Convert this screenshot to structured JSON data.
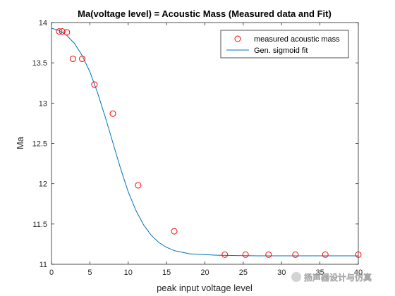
{
  "chart_data": {
    "type": "scatter",
    "title": "Ma(voltage level) = Acoustic Mass (Measured data and Fit)",
    "xlabel": "peak input voltage level",
    "ylabel": "Ma",
    "xlim": [
      0,
      40
    ],
    "ylim": [
      11,
      14
    ],
    "xticks": [
      0,
      5,
      10,
      15,
      20,
      25,
      30,
      35,
      40
    ],
    "yticks": [
      11,
      11.5,
      12,
      12.5,
      13,
      13.5,
      14
    ],
    "grid": false,
    "legend_position": "top-right",
    "series": [
      {
        "name": "measured acoustic mass",
        "style": "markers",
        "marker": "circle",
        "color": "#ff0000",
        "x": [
          1.0,
          1.4,
          2.0,
          2.8,
          4.0,
          5.6,
          8.0,
          11.3,
          16.0,
          22.6,
          25.3,
          28.3,
          31.8,
          35.7,
          40.0
        ],
        "y": [
          13.89,
          13.89,
          13.88,
          13.55,
          13.55,
          13.23,
          12.87,
          11.98,
          11.41,
          11.12,
          11.12,
          11.12,
          11.12,
          11.12,
          11.12
        ]
      },
      {
        "name": "Gen. sigmoid fit",
        "style": "line",
        "color": "#0072bd",
        "x": [
          0,
          1,
          2,
          3,
          4,
          5,
          6,
          7,
          8,
          9,
          10,
          11,
          12,
          13,
          14,
          15,
          16,
          17,
          18,
          19,
          20,
          21,
          22,
          23,
          24,
          25,
          26,
          27,
          28,
          29,
          30,
          31,
          32,
          33,
          34,
          35,
          36,
          37,
          38,
          39,
          40
        ],
        "y": [
          13.93,
          13.9,
          13.84,
          13.74,
          13.59,
          13.39,
          13.13,
          12.83,
          12.51,
          12.19,
          11.9,
          11.67,
          11.49,
          11.36,
          11.27,
          11.21,
          11.17,
          11.15,
          11.13,
          11.125,
          11.12,
          11.115,
          11.112,
          11.11,
          11.108,
          11.107,
          11.106,
          11.105,
          11.105,
          11.105,
          11.105,
          11.105,
          11.105,
          11.105,
          11.105,
          11.105,
          11.105,
          11.105,
          11.105,
          11.105,
          11.105
        ]
      }
    ]
  },
  "watermark": {
    "text": "扬声器设计与仿真"
  }
}
